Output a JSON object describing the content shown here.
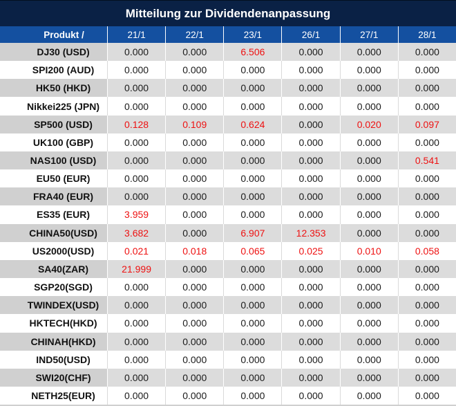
{
  "title": "Mitteilung zur Dividendenanpassung",
  "colors": {
    "title_bar_bg": "#0a2145",
    "header_row_bg": "#1450a0",
    "header_text": "#ffffff",
    "striped_row_product_bg": "#d0d0d0",
    "striped_row_value_bg": "#dcdcdc",
    "white_row_bg": "#ffffff",
    "value_text": "#1a1a1a",
    "highlight_red": "#ee1111"
  },
  "chart_data": {
    "type": "table",
    "title": "Mitteilung zur Dividendenanpassung",
    "product_header": "Produkt /",
    "date_columns": [
      "21/1",
      "22/1",
      "23/1",
      "26/1",
      "27/1",
      "28/1"
    ],
    "rows": [
      {
        "product": "DJ30 (USD)",
        "values": [
          "0.000",
          "0.000",
          "6.506",
          "0.000",
          "0.000",
          "0.000"
        ],
        "red": [
          false,
          false,
          true,
          false,
          false,
          false
        ]
      },
      {
        "product": "SPI200 (AUD)",
        "values": [
          "0.000",
          "0.000",
          "0.000",
          "0.000",
          "0.000",
          "0.000"
        ],
        "red": [
          false,
          false,
          false,
          false,
          false,
          false
        ]
      },
      {
        "product": "HK50 (HKD)",
        "values": [
          "0.000",
          "0.000",
          "0.000",
          "0.000",
          "0.000",
          "0.000"
        ],
        "red": [
          false,
          false,
          false,
          false,
          false,
          false
        ]
      },
      {
        "product": "Nikkei225 (JPN)",
        "values": [
          "0.000",
          "0.000",
          "0.000",
          "0.000",
          "0.000",
          "0.000"
        ],
        "red": [
          false,
          false,
          false,
          false,
          false,
          false
        ]
      },
      {
        "product": "SP500 (USD)",
        "values": [
          "0.128",
          "0.109",
          "0.624",
          "0.000",
          "0.020",
          "0.097"
        ],
        "red": [
          true,
          true,
          true,
          false,
          true,
          true
        ]
      },
      {
        "product": "UK100 (GBP)",
        "values": [
          "0.000",
          "0.000",
          "0.000",
          "0.000",
          "0.000",
          "0.000"
        ],
        "red": [
          false,
          false,
          false,
          false,
          false,
          false
        ]
      },
      {
        "product": "NAS100 (USD)",
        "values": [
          "0.000",
          "0.000",
          "0.000",
          "0.000",
          "0.000",
          "0.541"
        ],
        "red": [
          false,
          false,
          false,
          false,
          false,
          true
        ]
      },
      {
        "product": "EU50 (EUR)",
        "values": [
          "0.000",
          "0.000",
          "0.000",
          "0.000",
          "0.000",
          "0.000"
        ],
        "red": [
          false,
          false,
          false,
          false,
          false,
          false
        ]
      },
      {
        "product": "FRA40 (EUR)",
        "values": [
          "0.000",
          "0.000",
          "0.000",
          "0.000",
          "0.000",
          "0.000"
        ],
        "red": [
          false,
          false,
          false,
          false,
          false,
          false
        ]
      },
      {
        "product": "ES35 (EUR)",
        "values": [
          "3.959",
          "0.000",
          "0.000",
          "0.000",
          "0.000",
          "0.000"
        ],
        "red": [
          true,
          false,
          false,
          false,
          false,
          false
        ]
      },
      {
        "product": "CHINA50(USD)",
        "values": [
          "3.682",
          "0.000",
          "6.907",
          "12.353",
          "0.000",
          "0.000"
        ],
        "red": [
          true,
          false,
          true,
          true,
          false,
          false
        ]
      },
      {
        "product": "US2000(USD)",
        "values": [
          "0.021",
          "0.018",
          "0.065",
          "0.025",
          "0.010",
          "0.058"
        ],
        "red": [
          true,
          true,
          true,
          true,
          true,
          true
        ]
      },
      {
        "product": "SA40(ZAR)",
        "values": [
          "21.999",
          "0.000",
          "0.000",
          "0.000",
          "0.000",
          "0.000"
        ],
        "red": [
          true,
          false,
          false,
          false,
          false,
          false
        ]
      },
      {
        "product": "SGP20(SGD)",
        "values": [
          "0.000",
          "0.000",
          "0.000",
          "0.000",
          "0.000",
          "0.000"
        ],
        "red": [
          false,
          false,
          false,
          false,
          false,
          false
        ]
      },
      {
        "product": "TWINDEX(USD)",
        "values": [
          "0.000",
          "0.000",
          "0.000",
          "0.000",
          "0.000",
          "0.000"
        ],
        "red": [
          false,
          false,
          false,
          false,
          false,
          false
        ]
      },
      {
        "product": "HKTECH(HKD)",
        "values": [
          "0.000",
          "0.000",
          "0.000",
          "0.000",
          "0.000",
          "0.000"
        ],
        "red": [
          false,
          false,
          false,
          false,
          false,
          false
        ]
      },
      {
        "product": "CHINAH(HKD)",
        "values": [
          "0.000",
          "0.000",
          "0.000",
          "0.000",
          "0.000",
          "0.000"
        ],
        "red": [
          false,
          false,
          false,
          false,
          false,
          false
        ]
      },
      {
        "product": "IND50(USD)",
        "values": [
          "0.000",
          "0.000",
          "0.000",
          "0.000",
          "0.000",
          "0.000"
        ],
        "red": [
          false,
          false,
          false,
          false,
          false,
          false
        ]
      },
      {
        "product": "SWI20(CHF)",
        "values": [
          "0.000",
          "0.000",
          "0.000",
          "0.000",
          "0.000",
          "0.000"
        ],
        "red": [
          false,
          false,
          false,
          false,
          false,
          false
        ]
      },
      {
        "product": "NETH25(EUR)",
        "values": [
          "0.000",
          "0.000",
          "0.000",
          "0.000",
          "0.000",
          "0.000"
        ],
        "red": [
          false,
          false,
          false,
          false,
          false,
          false
        ]
      }
    ]
  }
}
